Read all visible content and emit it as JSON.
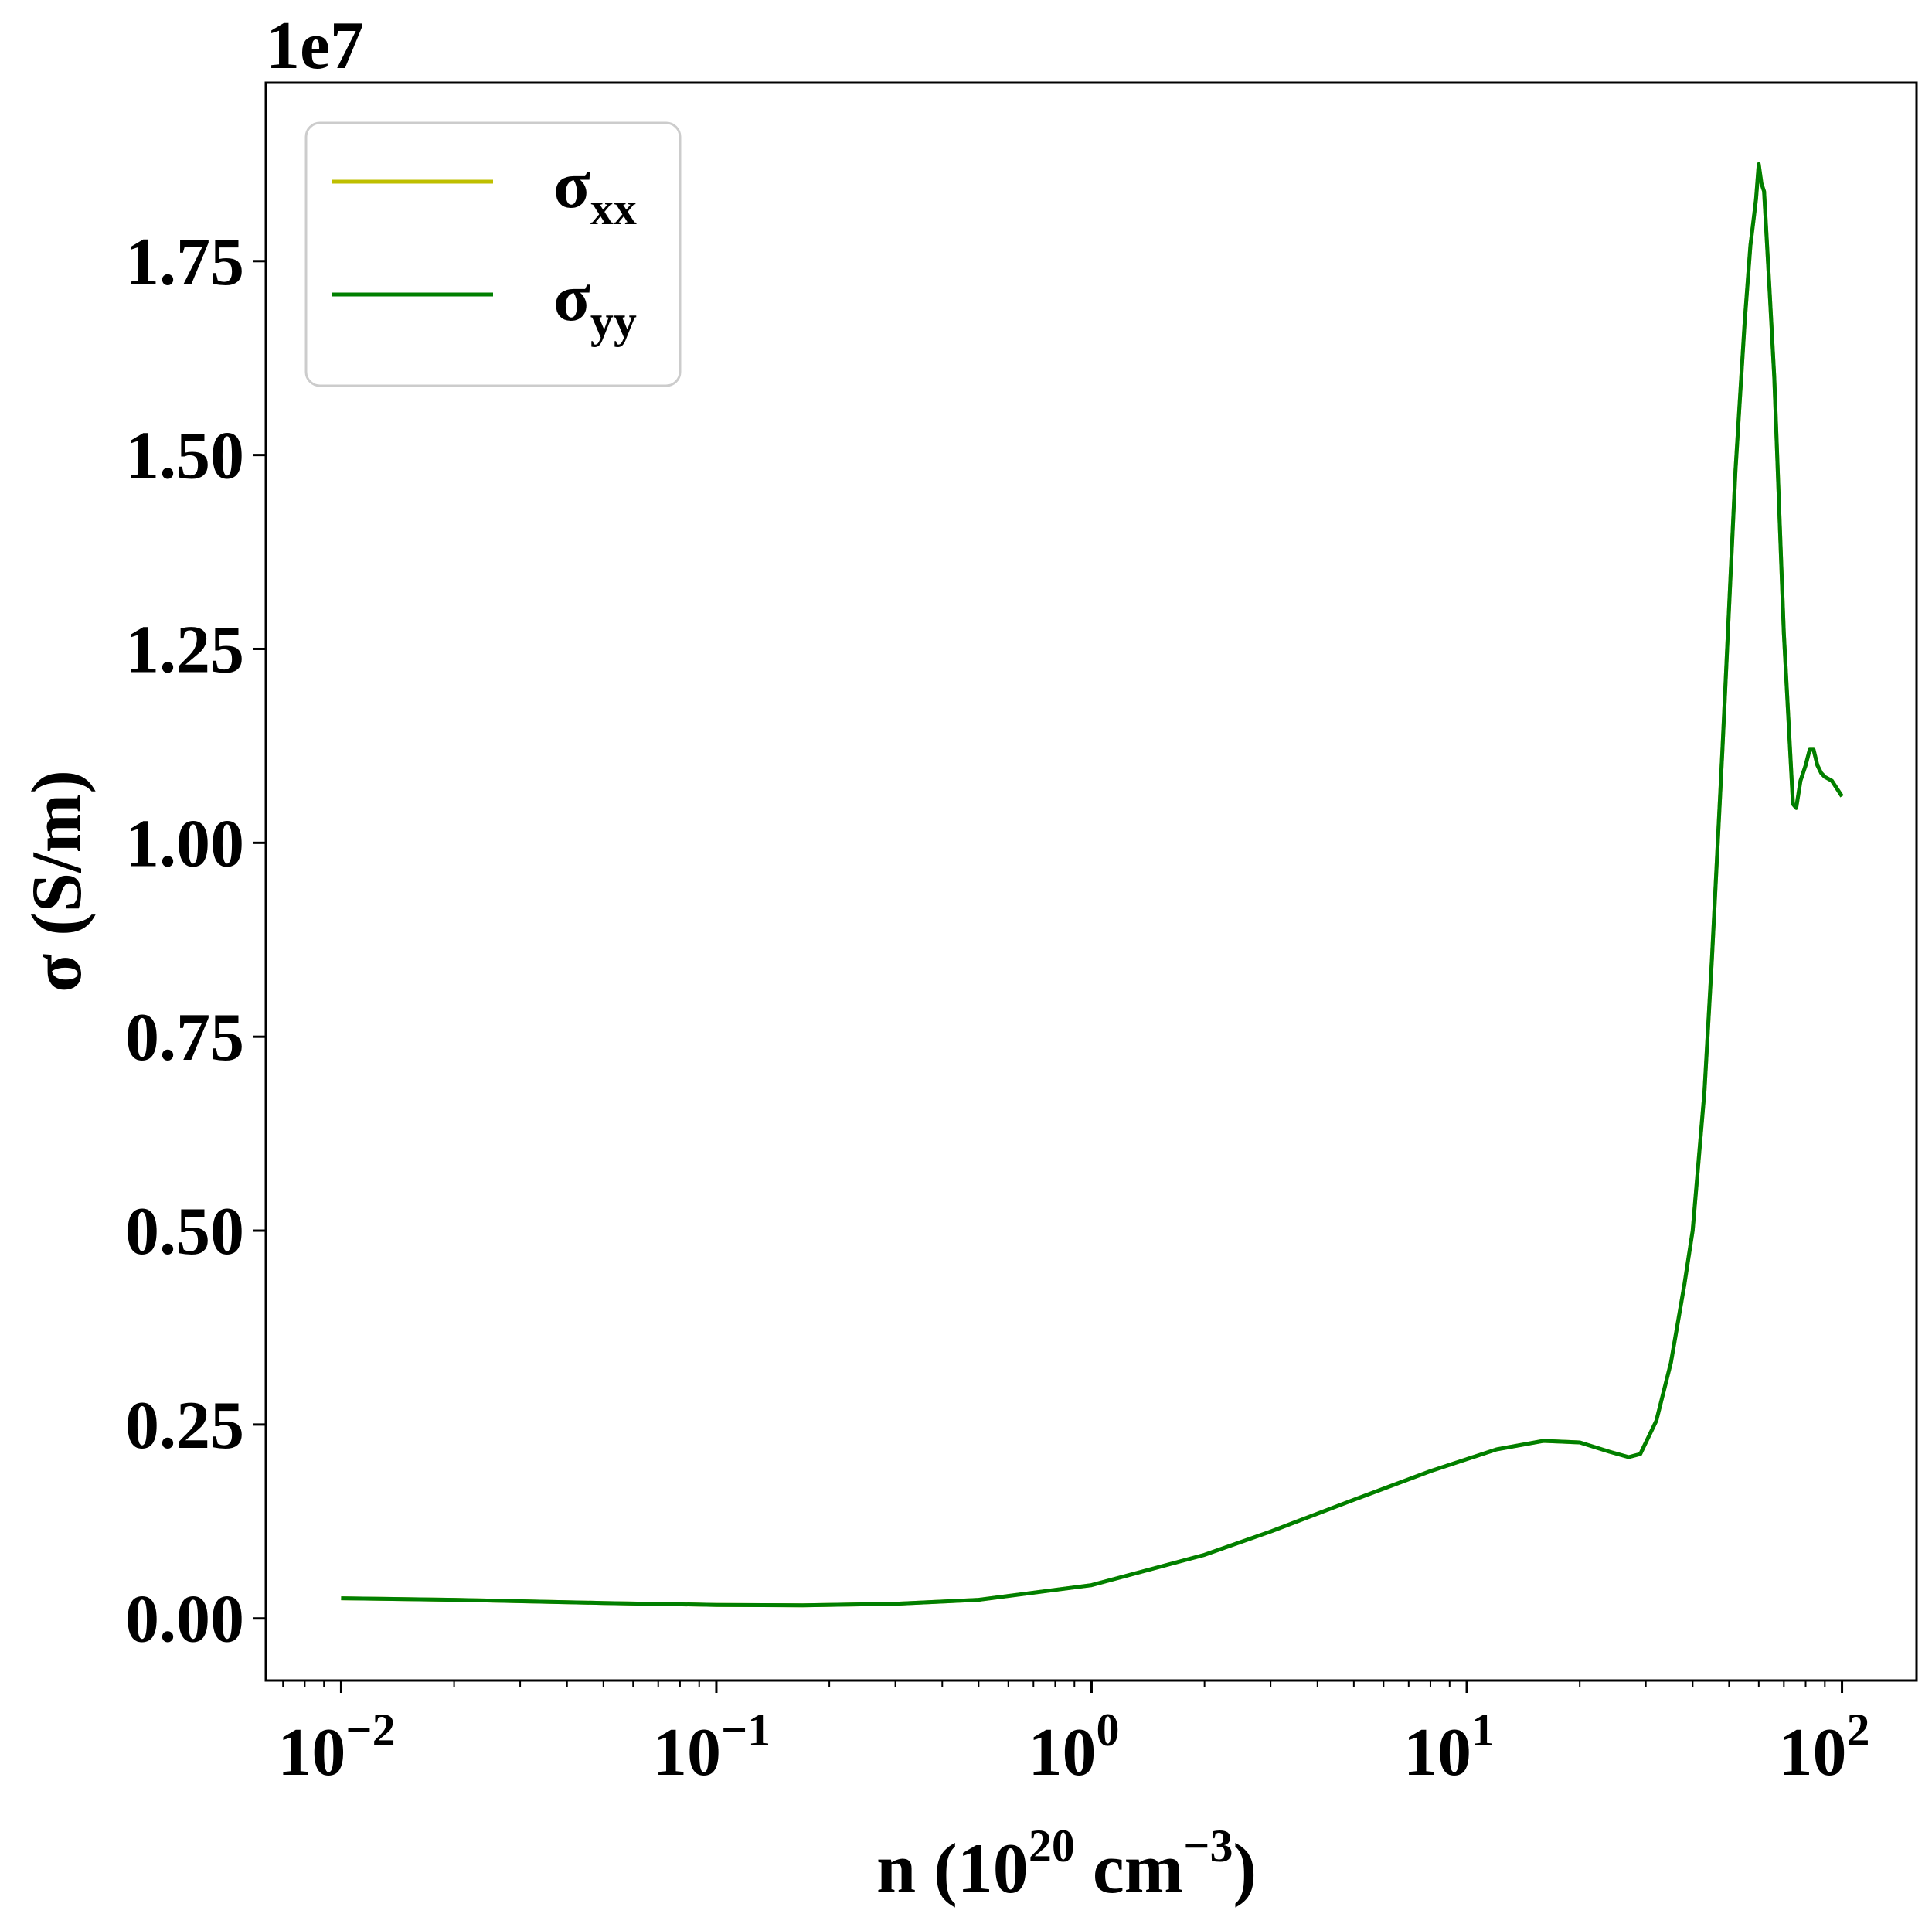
{
  "chart_data": {
    "type": "line",
    "xlabel": {
      "base": "n (10",
      "exp1": "20",
      "mid": " cm",
      "exp2": "−3",
      "end": ")"
    },
    "ylabel": "σ (S/m)",
    "offset_text": "1e7",
    "x_scale": "log",
    "xlim": [
      0.0063,
      158
    ],
    "ylim": [
      -0.08,
      1.98
    ],
    "x_ticks": [
      {
        "value": 0.01,
        "base": "10",
        "exp": "−2"
      },
      {
        "value": 0.1,
        "base": "10",
        "exp": "−1"
      },
      {
        "value": 1,
        "base": "10",
        "exp": "0"
      },
      {
        "value": 10,
        "base": "10",
        "exp": "1"
      },
      {
        "value": 100,
        "base": "10",
        "exp": "2"
      }
    ],
    "y_ticks": [
      {
        "value": 0.0,
        "label": "0.00"
      },
      {
        "value": 0.25,
        "label": "0.25"
      },
      {
        "value": 0.5,
        "label": "0.50"
      },
      {
        "value": 0.75,
        "label": "0.75"
      },
      {
        "value": 1.0,
        "label": "1.00"
      },
      {
        "value": 1.25,
        "label": "1.25"
      },
      {
        "value": 1.5,
        "label": "1.50"
      },
      {
        "value": 1.75,
        "label": "1.75"
      }
    ],
    "grid": false,
    "legend_position": "top-left",
    "series": [
      {
        "name": "σ",
        "name_sub": "xx",
        "color": "#bfbf00",
        "x": [
          0.01,
          0.02,
          0.05,
          0.1,
          0.17,
          0.3,
          0.5,
          1.0,
          2.0,
          3.0,
          5.0,
          8.0,
          12.0,
          16.0,
          20.0,
          24.0,
          27.0,
          29.0,
          32.0,
          35.0,
          38.0,
          40.0,
          43.0,
          45.0,
          48.0,
          52.0,
          55.0,
          57.0,
          58.0,
          59.0,
          60.0,
          61.0,
          62.0,
          64.0,
          66.0,
          70.0,
          74.0,
          75.5,
          77.5,
          80.0,
          82.0,
          84.0,
          86.0,
          88.0,
          90.0,
          94.0,
          100.0
        ],
        "y": [
          0.026,
          0.024,
          0.02,
          0.0175,
          0.017,
          0.019,
          0.024,
          0.043,
          0.082,
          0.112,
          0.153,
          0.19,
          0.218,
          0.229,
          0.227,
          0.215,
          0.208,
          0.212,
          0.255,
          0.33,
          0.43,
          0.5,
          0.68,
          0.85,
          1.12,
          1.48,
          1.67,
          1.77,
          1.8,
          1.83,
          1.875,
          1.85,
          1.84,
          1.72,
          1.6,
          1.27,
          1.05,
          1.045,
          1.08,
          1.1,
          1.12,
          1.12,
          1.1,
          1.09,
          1.085,
          1.08,
          1.06
        ]
      },
      {
        "name": "σ",
        "name_sub": "yy",
        "color": "#007f00",
        "x": [
          0.01,
          0.02,
          0.05,
          0.1,
          0.17,
          0.3,
          0.5,
          1.0,
          2.0,
          3.0,
          5.0,
          8.0,
          12.0,
          16.0,
          20.0,
          24.0,
          27.0,
          29.0,
          32.0,
          35.0,
          38.0,
          40.0,
          43.0,
          45.0,
          48.0,
          52.0,
          55.0,
          57.0,
          58.0,
          59.0,
          60.0,
          61.0,
          62.0,
          64.0,
          66.0,
          70.0,
          74.0,
          75.5,
          77.5,
          80.0,
          82.0,
          84.0,
          86.0,
          88.0,
          90.0,
          94.0,
          100.0
        ],
        "y": [
          0.026,
          0.024,
          0.02,
          0.0175,
          0.017,
          0.019,
          0.024,
          0.043,
          0.082,
          0.112,
          0.153,
          0.19,
          0.218,
          0.229,
          0.227,
          0.215,
          0.208,
          0.212,
          0.255,
          0.33,
          0.43,
          0.5,
          0.68,
          0.85,
          1.12,
          1.48,
          1.67,
          1.77,
          1.8,
          1.83,
          1.875,
          1.85,
          1.84,
          1.72,
          1.6,
          1.27,
          1.05,
          1.045,
          1.08,
          1.1,
          1.12,
          1.12,
          1.1,
          1.09,
          1.085,
          1.08,
          1.06
        ]
      }
    ]
  }
}
